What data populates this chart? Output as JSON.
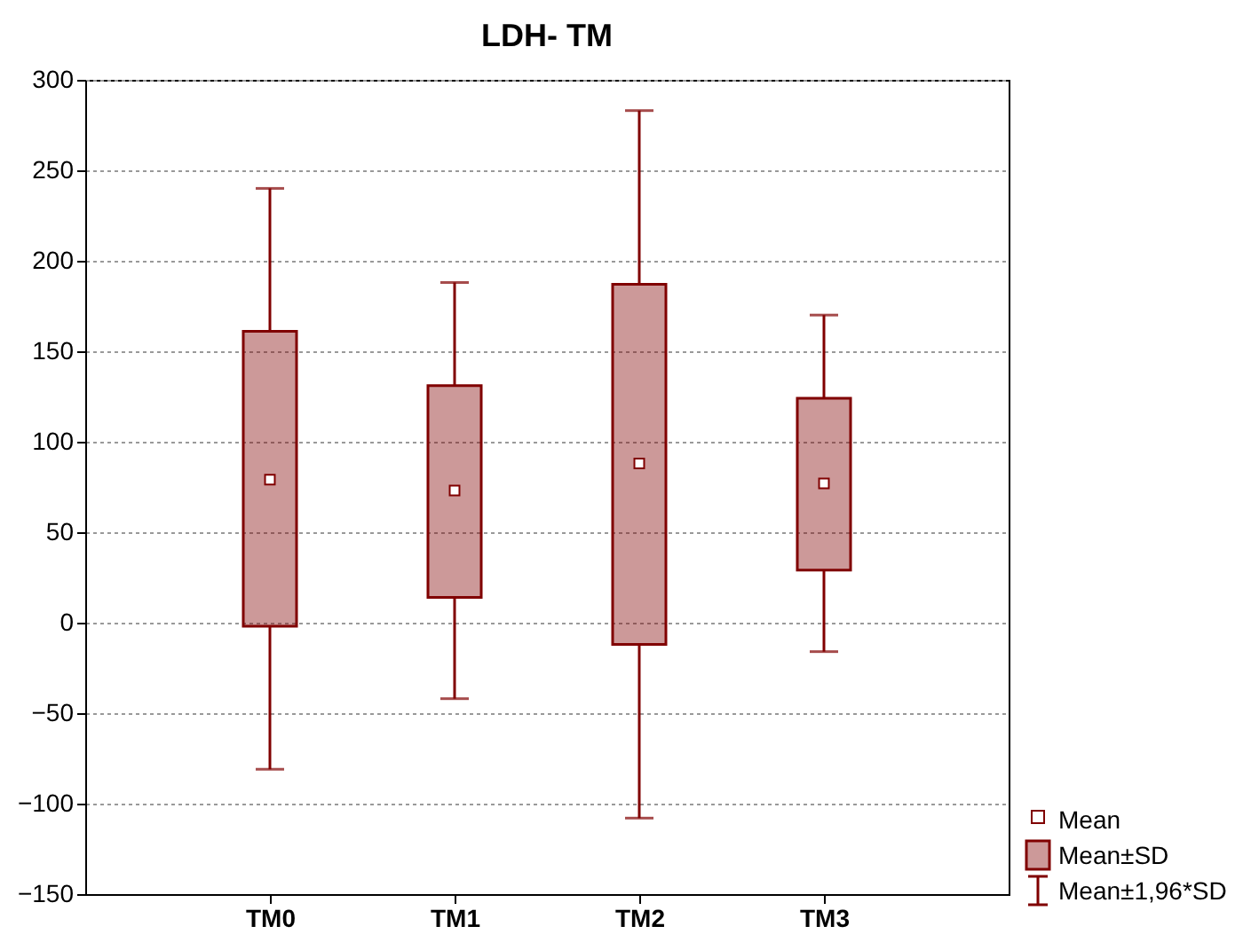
{
  "chart_data": {
    "type": "box",
    "title": "LDH- TM",
    "categories": [
      "TM0",
      "TM1",
      "TM2",
      "TM3"
    ],
    "color": "#800000",
    "boxes": [
      {
        "low": -81,
        "q1": -2,
        "q3": 161,
        "high": 240,
        "mean": 79
      },
      {
        "low": -42,
        "q1": 14,
        "q3": 131,
        "high": 188,
        "mean": 73
      },
      {
        "low": -108,
        "q1": -12,
        "q3": 187,
        "high": 283,
        "mean": 88
      },
      {
        "low": -16,
        "q1": 29,
        "q3": 124,
        "high": 170,
        "mean": 77
      }
    ],
    "ylim": [
      -150,
      300
    ],
    "yticks": [
      -150,
      -100,
      -50,
      0,
      50,
      100,
      150,
      200,
      250,
      300
    ],
    "grid": "y",
    "annotations": [
      "Mean",
      "Mean±SD",
      "Mean±1,96*SD"
    ]
  }
}
